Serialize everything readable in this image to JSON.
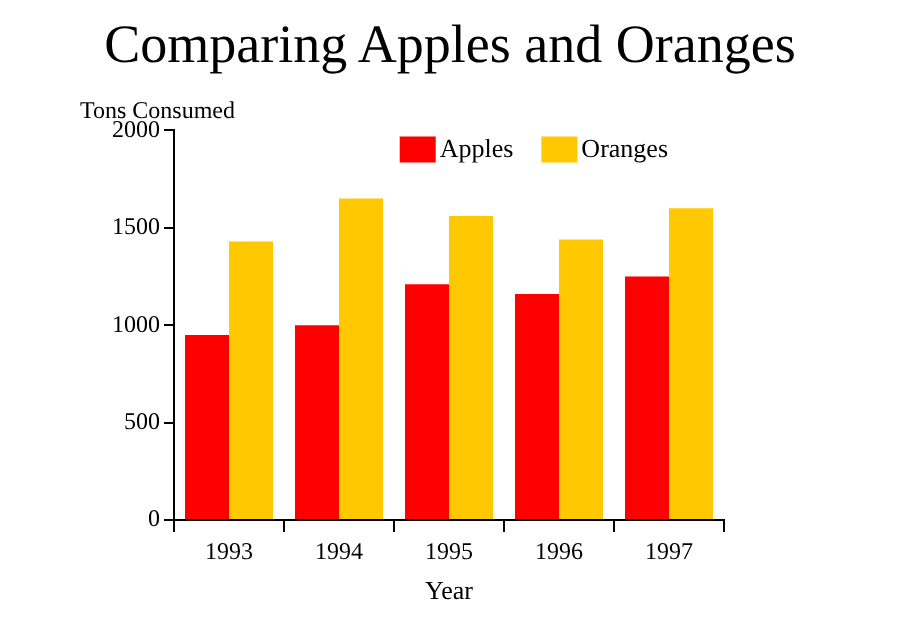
{
  "chart_data": {
    "type": "bar",
    "title": "Comparing Apples and Oranges",
    "xlabel": "Year",
    "ylabel": "Tons Consumed",
    "categories": [
      "1993",
      "1994",
      "1995",
      "1996",
      "1997"
    ],
    "series": [
      {
        "name": "Apples",
        "color": "#ff0000",
        "values": [
          950,
          1000,
          1210,
          1160,
          1250
        ]
      },
      {
        "name": "Oranges",
        "color": "#ffc800",
        "values": [
          1430,
          1650,
          1560,
          1440,
          1600
        ]
      }
    ],
    "ylim": [
      0,
      2000
    ],
    "yticks": [
      0,
      500,
      1000,
      1500,
      2000
    ],
    "grid": false,
    "legend": "top right"
  }
}
